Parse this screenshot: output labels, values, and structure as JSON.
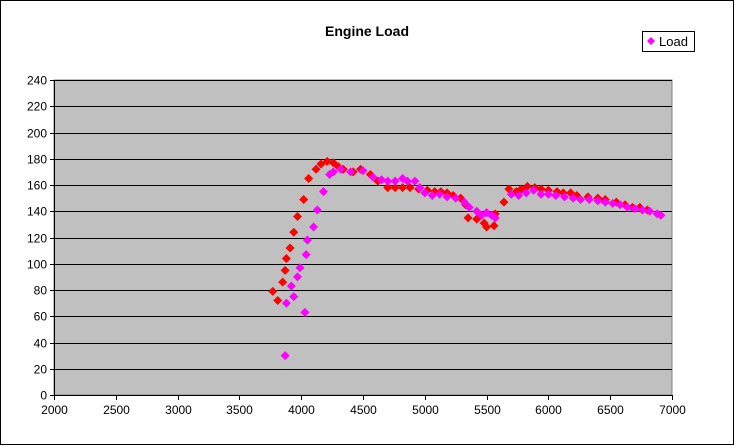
{
  "chart_data": {
    "type": "scatter",
    "title": "Engine Load",
    "xlabel": "",
    "ylabel": "",
    "xlim": [
      2000,
      7000
    ],
    "ylim": [
      0,
      240
    ],
    "x_ticks": [
      2000,
      2500,
      3000,
      3500,
      4000,
      4500,
      5000,
      5500,
      6000,
      6500,
      7000
    ],
    "y_ticks": [
      0,
      20,
      40,
      60,
      80,
      100,
      120,
      140,
      160,
      180,
      200,
      220,
      240
    ],
    "grid": "horizontal",
    "legend_position": "top-right",
    "legend": [
      "Load"
    ],
    "series": [
      {
        "name": "Load",
        "color": "#FF00FF",
        "x": [
          3870,
          3880,
          3940,
          3920,
          3970,
          3990,
          4030,
          4040,
          4050,
          4100,
          4130,
          4180,
          4230,
          4260,
          4320,
          4400,
          4500,
          4580,
          4650,
          4700,
          4760,
          4820,
          4860,
          4920,
          4960,
          5000,
          5060,
          5120,
          5180,
          5250,
          5320,
          5360,
          5420,
          5460,
          5500,
          5540,
          5570,
          5700,
          5760,
          5820,
          5880,
          5940,
          6000,
          6060,
          6130,
          6200,
          6260,
          6330,
          6400,
          6460,
          6520,
          6580,
          6640,
          6700,
          6760,
          6820,
          6880,
          6910
        ],
        "y": [
          30,
          70,
          75,
          83,
          90,
          97,
          63,
          107,
          118,
          128,
          141,
          155,
          168,
          170,
          172,
          170,
          171,
          166,
          164,
          163,
          163,
          165,
          163,
          163,
          158,
          154,
          152,
          153,
          151,
          150,
          147,
          143,
          140,
          137,
          139,
          137,
          135,
          153,
          152,
          154,
          156,
          153,
          153,
          152,
          151,
          150,
          149,
          149,
          148,
          147,
          146,
          145,
          143,
          142,
          141,
          140,
          138,
          137
        ]
      },
      {
        "name": "",
        "color": "#FF0000",
        "x": [
          3770,
          3810,
          3850,
          3870,
          3880,
          3910,
          3940,
          3970,
          4020,
          4060,
          4120,
          4160,
          4210,
          4260,
          4300,
          4340,
          4420,
          4480,
          4560,
          4620,
          4700,
          4760,
          4820,
          4880,
          4950,
          5020,
          5080,
          5130,
          5180,
          5230,
          5290,
          5330,
          5350,
          5420,
          5480,
          5500,
          5560,
          5570,
          5640,
          5680,
          5740,
          5780,
          5830,
          5890,
          5940,
          6000,
          6070,
          6120,
          6180,
          6230,
          6320,
          6400,
          6460,
          6550,
          6620,
          6680,
          6740,
          6800
        ],
        "y": [
          79,
          72,
          86,
          95,
          104,
          112,
          124,
          136,
          149,
          165,
          172,
          176,
          178,
          177,
          174,
          172,
          170,
          172,
          168,
          163,
          158,
          158,
          158,
          158,
          157,
          156,
          155,
          155,
          154,
          152,
          150,
          145,
          135,
          134,
          131,
          128,
          129,
          138,
          147,
          157,
          155,
          157,
          159,
          158,
          157,
          156,
          155,
          154,
          154,
          152,
          151,
          150,
          149,
          147,
          145,
          143,
          143,
          141
        ]
      }
    ]
  }
}
